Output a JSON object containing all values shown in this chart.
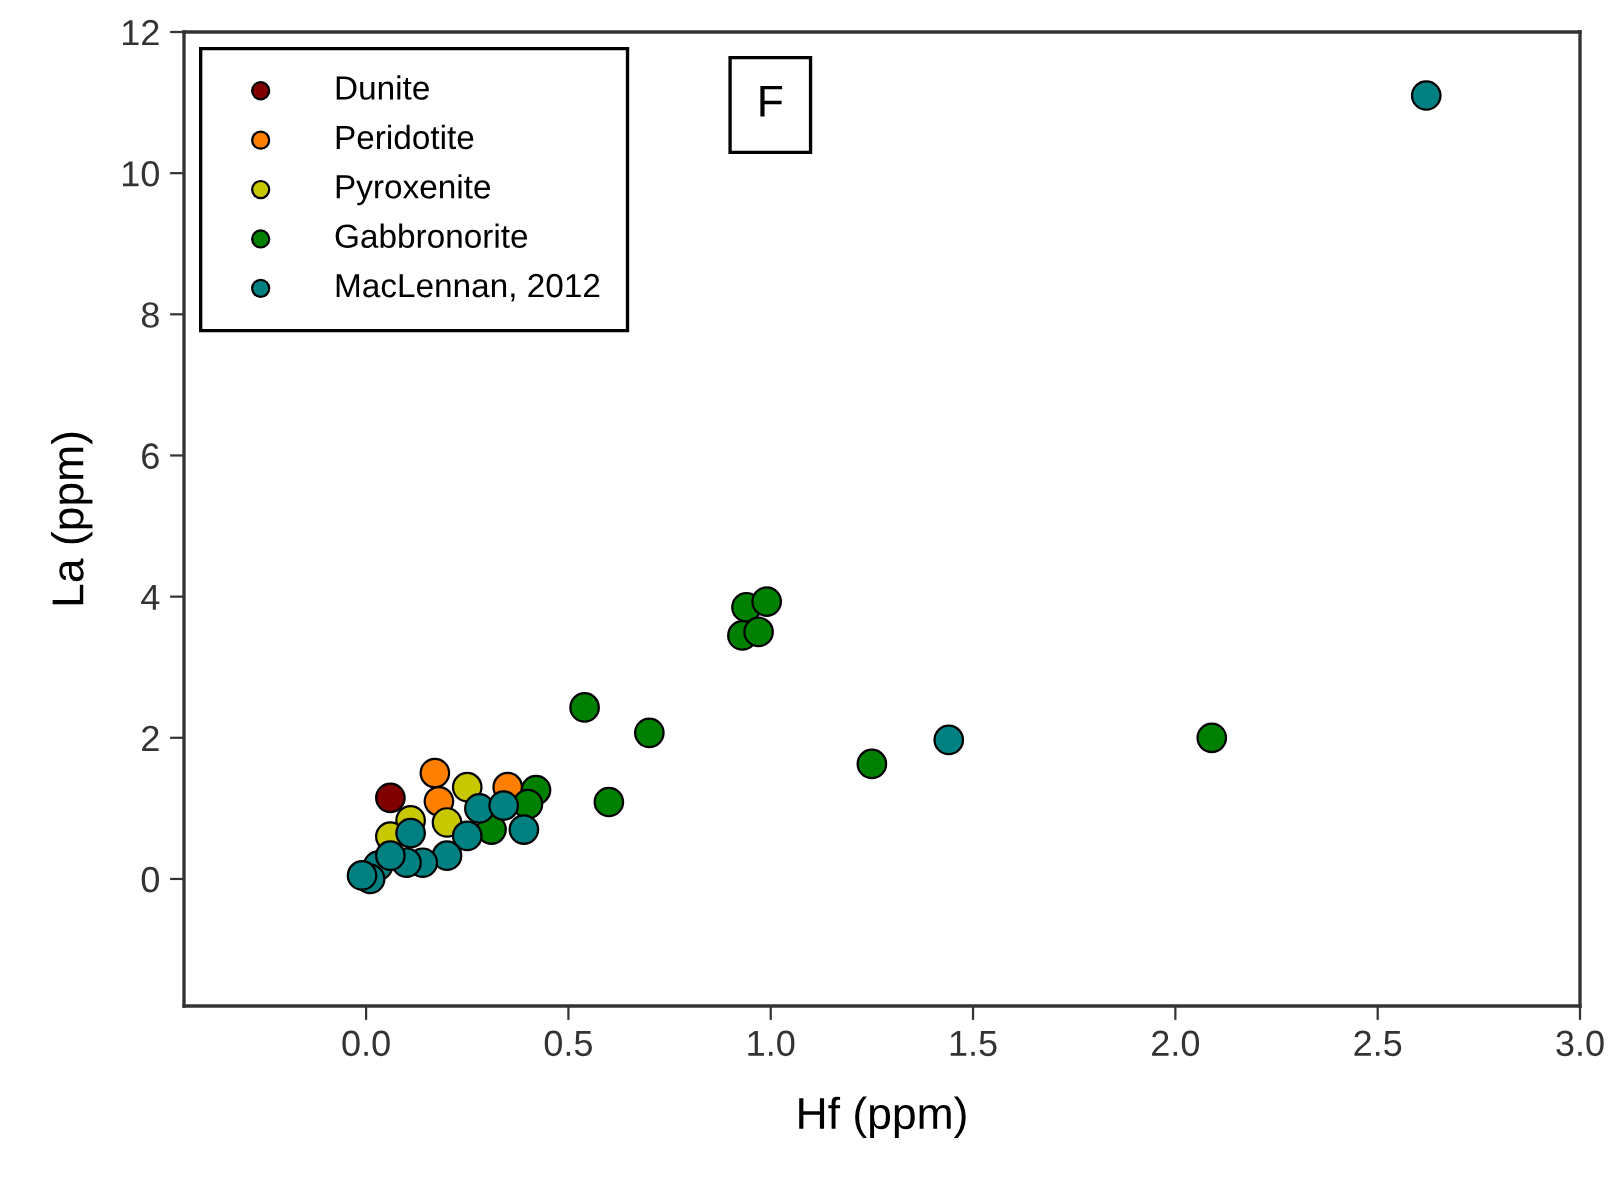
{
  "chart_data": {
    "type": "scatter",
    "xlabel": "Hf (ppm)",
    "ylabel": "La (ppm)",
    "xlim": [
      -0.45,
      3.0
    ],
    "ylim": [
      -1.8,
      12
    ],
    "xticks": [
      {
        "value": 0,
        "label": "0.0"
      },
      {
        "value": 0.5,
        "label": "0.5"
      },
      {
        "value": 1,
        "label": "1.0"
      },
      {
        "value": 1.5,
        "label": "1.5"
      },
      {
        "value": 2,
        "label": "2.0"
      },
      {
        "value": 2.5,
        "label": "2.5"
      },
      {
        "value": 3,
        "label": "3.0"
      }
    ],
    "yticks": [
      0,
      2,
      4,
      6,
      8,
      10,
      12
    ],
    "grid": false,
    "legend": "top left",
    "marker": "circle",
    "annotations": [
      "F"
    ],
    "series": [
      {
        "name": "Dunite",
        "color": "#800000",
        "x": [
          0.06
        ],
        "values": [
          1.15
        ]
      },
      {
        "name": "Peridotite",
        "color": "#ff8000",
        "x": [
          0.17,
          0.18,
          0.35
        ],
        "values": [
          1.5,
          1.1,
          1.3
        ]
      },
      {
        "name": "Pyroxenite",
        "color": "#c8c800",
        "x": [
          0.25,
          0.2,
          0.11,
          0.06
        ],
        "values": [
          1.3,
          0.8,
          0.83,
          0.6
        ]
      },
      {
        "name": "Gabbronorite",
        "color": "#008000",
        "x": [
          0.54,
          0.7,
          0.6,
          1.25,
          0.42,
          0.4,
          0.31,
          0.94,
          0.99,
          0.93,
          0.97,
          2.09
        ],
        "values": [
          2.43,
          2.07,
          1.09,
          1.63,
          1.26,
          1.06,
          0.7,
          3.85,
          3.93,
          3.45,
          3.5,
          2.0
        ]
      },
      {
        "name": "MacLennan, 2012",
        "color": "#008080",
        "x": [
          2.62,
          1.44,
          0.28,
          0.34,
          0.39,
          0.25,
          0.2,
          0.14,
          0.11,
          0.03,
          0.01,
          -0.01,
          0.1,
          0.06
        ],
        "values": [
          11.1,
          1.97,
          1.0,
          1.04,
          0.7,
          0.61,
          0.33,
          0.23,
          0.65,
          0.19,
          0.0,
          0.05,
          0.23,
          0.33
        ]
      }
    ]
  }
}
